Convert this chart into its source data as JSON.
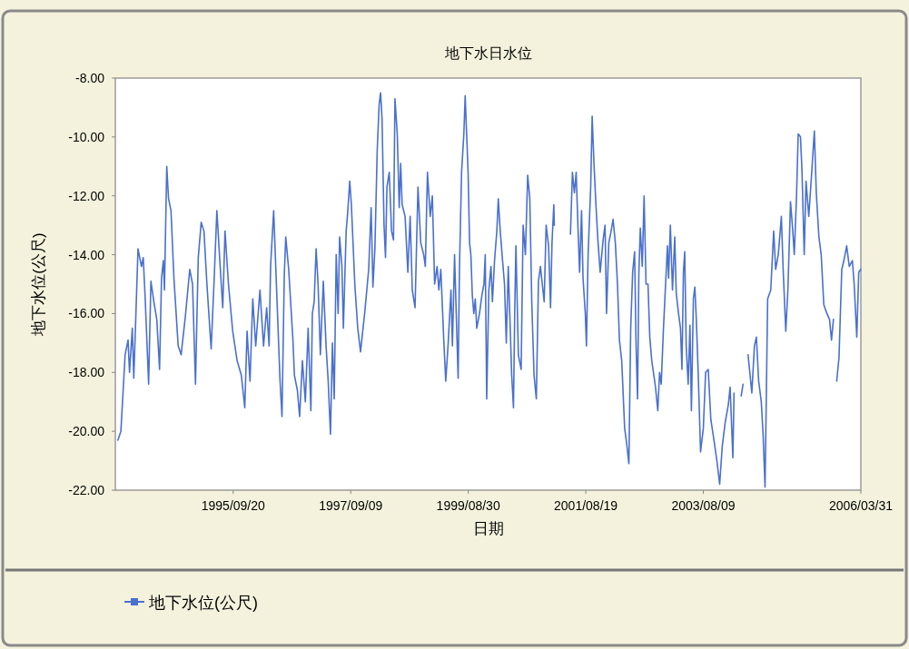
{
  "chart_data": {
    "type": "line",
    "title": "地下水日水位",
    "xlabel": "日期",
    "ylabel": "地下水位(公尺)",
    "xlim": [
      "1993-09-28",
      "2006-03-31"
    ],
    "xticks": [
      {
        "value": "1995-09-20",
        "label": "1995/09/20"
      },
      {
        "value": "1997-09-09",
        "label": "1997/09/09"
      },
      {
        "value": "1999-08-30",
        "label": "1999/08/30"
      },
      {
        "value": "2001-08-19",
        "label": "2001/08/19"
      },
      {
        "value": "2003-08-09",
        "label": "2003/08/09"
      },
      {
        "value": "2006-03-31",
        "label": "2006/03/31"
      }
    ],
    "ylim": [
      -22,
      -8
    ],
    "yticks": [
      {
        "value": -8,
        "label": "-8.00"
      },
      {
        "value": -10,
        "label": "-10.00"
      },
      {
        "value": -12,
        "label": "-12.00"
      },
      {
        "value": -14,
        "label": "-14.00"
      },
      {
        "value": -16,
        "label": "-16.00"
      },
      {
        "value": -18,
        "label": "-18.00"
      },
      {
        "value": -20,
        "label": "-20.00"
      },
      {
        "value": -22,
        "label": "-22.00"
      }
    ],
    "legend": "bottom",
    "marker": "none",
    "line_style": "solid",
    "x": [
      "1993-10-14",
      "1993-11-01",
      "1993-11-10",
      "1993-11-27",
      "1993-12-15",
      "1993-12-24",
      "1994-01-10",
      "1994-01-19",
      "1994-01-31",
      "1994-02-14",
      "1994-03-07",
      "1994-03-18",
      "1994-03-30",
      "1994-04-20",
      "1994-05-04",
      "1994-05-22",
      "1994-06-09",
      "1994-06-26",
      "1994-07-08",
      "1994-07-19",
      "1994-07-26",
      "1994-08-09",
      "1994-08-20",
      "1994-09-04",
      "1994-09-22",
      "1994-10-18",
      "1994-11-05",
      "1994-12-01",
      "1994-12-28",
      "1995-01-14",
      "1995-02-01",
      "1995-02-18",
      "1995-03-08",
      "1995-03-25",
      "1995-04-12",
      "1995-05-08",
      "1995-05-26",
      "1995-06-12",
      "1995-06-30",
      "1995-07-18",
      "1995-08-01",
      "1995-08-22",
      "1995-09-17",
      "1995-10-14",
      "1995-11-09",
      "1995-11-30",
      "1995-12-14",
      "1996-01-01",
      "1996-01-18",
      "1996-02-05",
      "1996-03-02",
      "1996-03-24",
      "1996-04-12",
      "1996-04-27",
      "1996-05-06",
      "1996-05-25",
      "1996-06-10",
      "1996-07-03",
      "1996-07-15",
      "1996-07-29",
      "1996-08-07",
      "1996-08-25",
      "1996-09-20",
      "1996-09-29",
      "1996-10-17",
      "1996-10-31",
      "1996-11-17",
      "1996-12-05",
      "1996-12-22",
      "1997-01-08",
      "1997-01-17",
      "1997-01-28",
      "1997-02-09",
      "1997-02-21",
      "1997-03-07",
      "1997-03-25",
      "1997-04-11",
      "1997-04-24",
      "1997-05-08",
      "1997-05-20",
      "1997-05-31",
      "1997-06-12",
      "1997-06-24",
      "1997-07-03",
      "1997-07-17",
      "1997-07-26",
      "1997-08-12",
      "1997-08-21",
      "1997-09-03",
      "1997-09-13",
      "1997-10-04",
      "1997-10-22",
      "1997-11-08",
      "1997-12-05",
      "1997-12-28",
      "1998-01-12",
      "1998-01-23",
      "1998-02-04",
      "1998-02-18",
      "1998-03-02",
      "1998-03-11",
      "1998-03-20",
      "1998-04-01",
      "1998-04-10",
      "1998-04-19",
      "1998-05-03",
      "1998-05-17",
      "1998-05-29",
      "1998-06-07",
      "1998-06-21",
      "1998-07-03",
      "1998-07-12",
      "1998-07-21",
      "1998-08-08",
      "1998-08-25",
      "1998-09-08",
      "1998-09-21",
      "1998-10-08",
      "1998-10-26",
      "1998-11-12",
      "1998-11-30",
      "1998-12-10",
      "1998-12-23",
      "1999-01-09",
      "1999-01-22",
      "1999-02-05",
      "1999-02-20",
      "1999-03-03",
      "1999-03-15",
      "1999-04-02",
      "1999-04-14",
      "1999-04-28",
      "1999-05-16",
      "1999-05-25",
      "1999-06-07",
      "1999-06-20",
      "1999-06-29",
      "1999-07-07",
      "1999-07-20",
      "1999-08-03",
      "1999-08-11",
      "1999-08-20",
      "1999-08-29",
      "1999-09-07",
      "1999-09-15",
      "1999-09-24",
      "1999-10-03",
      "1999-10-12",
      "1999-10-21",
      "1999-11-07",
      "1999-11-21",
      "1999-12-04",
      "1999-12-12",
      "1999-12-21",
      "2000-01-03",
      "2000-01-16",
      "2000-01-25",
      "2000-02-07",
      "2000-02-21",
      "2000-03-01",
      "2000-03-13",
      "2000-03-27",
      "2000-04-08",
      "2000-04-19",
      "2000-05-01",
      "2000-05-13",
      "2000-05-22",
      "2000-06-02",
      "2000-06-10",
      "2000-06-17",
      "2000-07-02",
      "2000-07-19",
      "2000-07-31",
      "2000-08-14",
      "2000-08-28",
      "2000-09-10",
      "2000-09-22",
      "2000-10-06",
      "2000-10-20",
      "2000-11-02",
      "2000-11-14",
      "2000-12-07",
      "2000-12-19",
      "2001-01-03",
      "2001-01-15",
      "2001-01-24",
      "2001-02-04",
      "2001-02-07",
      "2001-03-28",
      "2001-05-17",
      "2001-05-29",
      "2001-06-10",
      "2001-06-21",
      "2001-07-03",
      "2001-07-12",
      "2001-07-24",
      "2001-08-02",
      "2001-08-16",
      "2001-08-23",
      "2001-09-02",
      "2001-09-18",
      "2001-09-27",
      "2001-10-08",
      "2001-10-20",
      "2001-11-01",
      "2001-11-15",
      "2001-12-03",
      "2001-12-15",
      "2001-12-24",
      "2002-01-07",
      "2002-01-21",
      "2002-02-02",
      "2002-02-16",
      "2002-03-01",
      "2002-03-13",
      "2002-03-27",
      "2002-04-14",
      "2002-04-26",
      "2002-05-10",
      "2002-05-21",
      "2002-06-02",
      "2002-06-14",
      "2002-06-23",
      "2002-07-02",
      "2002-07-10",
      "2002-07-19",
      "2002-07-31",
      "2002-08-11",
      "2002-08-23",
      "2002-09-04",
      "2002-09-15",
      "2002-09-27",
      "2002-10-10",
      "2002-10-20",
      "2002-11-03",
      "2002-11-14",
      "2002-11-24",
      "2002-12-07",
      "2002-12-19",
      "2003-01-01",
      "2003-01-08",
      "2003-01-19",
      "2003-02-01",
      "2003-02-15",
      "2003-02-24",
      "2003-03-10",
      "2003-03-22",
      "2003-03-31",
      "2003-04-09",
      "2003-04-17",
      "2003-04-26",
      "2003-05-08",
      "2003-05-19",
      "2003-05-28",
      "2003-06-09",
      "2003-06-18",
      "2003-06-27",
      "2003-07-09",
      "2003-07-23",
      "2003-08-09",
      "2003-08-23",
      "2003-09-08",
      "2003-09-24",
      "2003-10-13",
      "2003-10-31",
      "2003-11-17",
      "2003-12-03",
      "2003-12-21",
      "2004-01-09",
      "2004-01-20",
      "2004-02-06",
      "2004-02-13",
      "2004-03-05",
      "2004-03-28",
      "2004-04-08",
      "2004-04-22",
      "2004-05-09",
      "2004-06-01",
      "2004-06-17",
      "2004-06-29",
      "2004-07-13",
      "2004-07-29",
      "2004-08-09",
      "2004-08-21",
      "2004-09-06",
      "2004-09-25",
      "2004-10-13",
      "2004-10-25",
      "2004-11-10",
      "2004-11-29",
      "2004-12-10",
      "2004-12-26",
      "2005-01-08",
      "2005-01-24",
      "2005-02-07",
      "2005-02-16",
      "2005-03-02",
      "2005-03-12",
      "2005-03-26",
      "2005-04-04",
      "2005-04-18",
      "2005-04-29",
      "2005-05-16",
      "2005-06-03",
      "2005-06-19",
      "2005-07-01",
      "2005-07-17",
      "2005-07-31",
      "2005-08-16",
      "2005-09-04",
      "2005-09-20",
      "2005-10-02",
      "2005-10-14",
      "2005-10-23",
      "2005-11-03",
      "2005-11-17",
      "2005-12-04",
      "2005-12-17",
      "2006-01-03",
      "2006-01-19",
      "2006-02-07",
      "2006-02-18",
      "2006-03-06",
      "2006-03-18",
      "2006-03-30"
    ],
    "series": [
      {
        "name": "地下水位(公尺)",
        "color": "#4a70cf",
        "values": [
          -20.3,
          -20.0,
          -19.1,
          -17.4,
          -16.9,
          -18.0,
          -16.5,
          -18.2,
          -16.2,
          -13.8,
          -14.4,
          -14.1,
          -15.5,
          -18.4,
          -14.9,
          -15.6,
          -16.2,
          -17.9,
          -14.8,
          -14.2,
          -15.2,
          -11.0,
          -12.1,
          -12.5,
          -14.8,
          -17.1,
          -17.4,
          -16.1,
          -14.5,
          -15.0,
          -18.4,
          -14.1,
          -12.9,
          -13.2,
          -15.0,
          -17.2,
          -14.9,
          -12.5,
          -14.2,
          -15.8,
          -13.2,
          -15.0,
          -16.6,
          -17.6,
          -18.1,
          -19.2,
          -16.6,
          -18.3,
          -15.5,
          -17.1,
          -15.2,
          -17.1,
          -15.8,
          -17.1,
          -14.4,
          -12.5,
          -14.9,
          -18.3,
          -19.5,
          -14.7,
          -13.4,
          -14.5,
          -16.9,
          -18.1,
          -18.6,
          -19.5,
          -17.6,
          -19.0,
          -16.5,
          -19.3,
          -16.0,
          -15.6,
          -13.8,
          -15.0,
          -17.4,
          -14.9,
          -17.1,
          -18.3,
          -20.1,
          -17.0,
          -18.9,
          -14.0,
          -16.0,
          -13.4,
          -14.4,
          -16.5,
          -13.2,
          -12.6,
          -11.5,
          -12.3,
          -15.0,
          -16.5,
          -17.3,
          -15.9,
          -14.5,
          -12.4,
          -15.1,
          -13.8,
          -10.5,
          -8.9,
          -8.5,
          -9.4,
          -13.0,
          -14.1,
          -11.7,
          -11.2,
          -13.2,
          -13.5,
          -8.7,
          -9.9,
          -12.4,
          -10.9,
          -12.3,
          -12.7,
          -14.6,
          -12.7,
          -15.2,
          -15.8,
          -11.7,
          -13.6,
          -14.0,
          -14.4,
          -11.2,
          -12.7,
          -12.0,
          -15.0,
          -14.4,
          -15.2,
          -14.5,
          -16.9,
          -18.3,
          -17.1,
          -15.2,
          -17.1,
          -14.0,
          -16.5,
          -18.2,
          -14.5,
          -11.2,
          -9.9,
          -8.6,
          -9.9,
          -11.2,
          -13.6,
          -14.0,
          -15.4,
          -16.0,
          -15.5,
          -16.5,
          -16.0,
          -15.4,
          -15.0,
          -14.0,
          -18.9,
          -15.2,
          -14.4,
          -15.6,
          -14.2,
          -13.2,
          -12.1,
          -13.2,
          -14.2,
          -15.0,
          -17.0,
          -14.4,
          -16.5,
          -18.1,
          -19.2,
          -15.8,
          -13.7,
          -17.4,
          -17.9,
          -13.0,
          -14.0,
          -11.3,
          -12.1,
          -15.6,
          -18.1,
          -18.9,
          -14.9,
          -14.4,
          -15.6,
          -13.0,
          -13.7,
          -15.8,
          -13.6,
          -12.3,
          -13.0,
          null,
          -13.3,
          -11.2,
          -11.9,
          -11.2,
          -13.2,
          -14.6,
          -12.5,
          -14.8,
          -16.0,
          -17.1,
          -14.0,
          -11.7,
          -9.3,
          -10.9,
          -12.3,
          -13.5,
          -14.6,
          -13.5,
          -13.0,
          -16.0,
          -13.6,
          -13.2,
          -12.8,
          -13.6,
          -15.0,
          -16.9,
          -17.6,
          -19.9,
          -20.4,
          -21.1,
          -16.5,
          -14.6,
          -13.9,
          -17.1,
          -18.9,
          -14.6,
          -13.1,
          -14.4,
          -12.0,
          -15.0,
          -15.0,
          -16.8,
          -17.6,
          -18.1,
          -18.5,
          -19.3,
          -18.0,
          -18.4,
          -16.6,
          -15.2,
          -13.7,
          -14.8,
          -13.0,
          -15.2,
          -13.4,
          -15.3,
          -16.0,
          -16.5,
          -17.9,
          -14.6,
          -13.9,
          -17.1,
          -18.4,
          -16.4,
          -19.3,
          -15.5,
          -15.1,
          -16.2,
          -18.1,
          -20.7,
          -19.9,
          -18.0,
          -17.9,
          -19.6,
          -20.3,
          -21.0,
          -21.8,
          -20.5,
          -19.7,
          -19.1,
          -18.5,
          -20.9,
          -18.7,
          null,
          -18.8,
          -18.4,
          null,
          -17.4,
          -18.7,
          -17.1,
          -16.8,
          -18.3,
          -19.0,
          -20.1,
          -21.9,
          -15.5,
          -15.2,
          -13.2,
          -14.5,
          -14.0,
          -12.7,
          -14.5,
          -16.6,
          -15.2,
          -12.2,
          -13.2,
          -14.0,
          -12.0,
          -9.9,
          -10.0,
          -11.1,
          -14.0,
          -11.5,
          -12.7,
          -11.2,
          -9.8,
          -11.9,
          -13.4,
          -14.0,
          -15.7,
          -16.0,
          -16.2,
          -16.9,
          -16.2,
          null,
          -18.3,
          -17.5,
          -14.5,
          -14.2,
          -13.7,
          -14.4,
          -14.2,
          -15.0,
          -16.8,
          -14.6,
          -14.5
        ]
      }
    ]
  }
}
